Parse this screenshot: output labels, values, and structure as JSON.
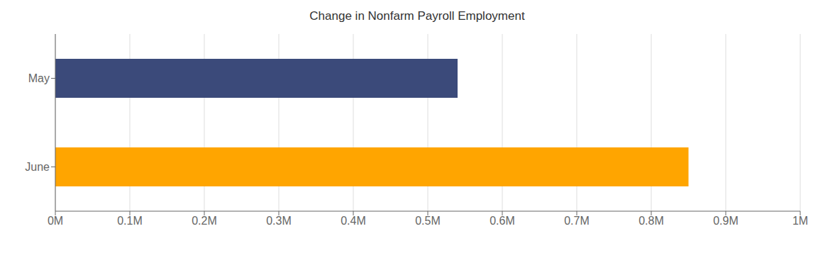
{
  "chart_data": {
    "type": "bar",
    "title": "Change in Nonfarm Payroll Employment",
    "orientation": "horizontal",
    "categories": [
      "June",
      "May"
    ],
    "values": [
      850000,
      540000
    ],
    "colors": [
      "#FFA500",
      "#3B4A7A"
    ],
    "xlim": [
      0,
      1000000
    ],
    "xticks": [
      {
        "value": 0,
        "label": "0M"
      },
      {
        "value": 100000,
        "label": "0.1M"
      },
      {
        "value": 200000,
        "label": "0.2M"
      },
      {
        "value": 300000,
        "label": "0.3M"
      },
      {
        "value": 400000,
        "label": "0.4M"
      },
      {
        "value": 500000,
        "label": "0.5M"
      },
      {
        "value": 600000,
        "label": "0.6M"
      },
      {
        "value": 700000,
        "label": "0.7M"
      },
      {
        "value": 800000,
        "label": "0.8M"
      },
      {
        "value": 900000,
        "label": "0.9M"
      },
      {
        "value": 1000000,
        "label": "1M"
      }
    ],
    "grid": true
  }
}
